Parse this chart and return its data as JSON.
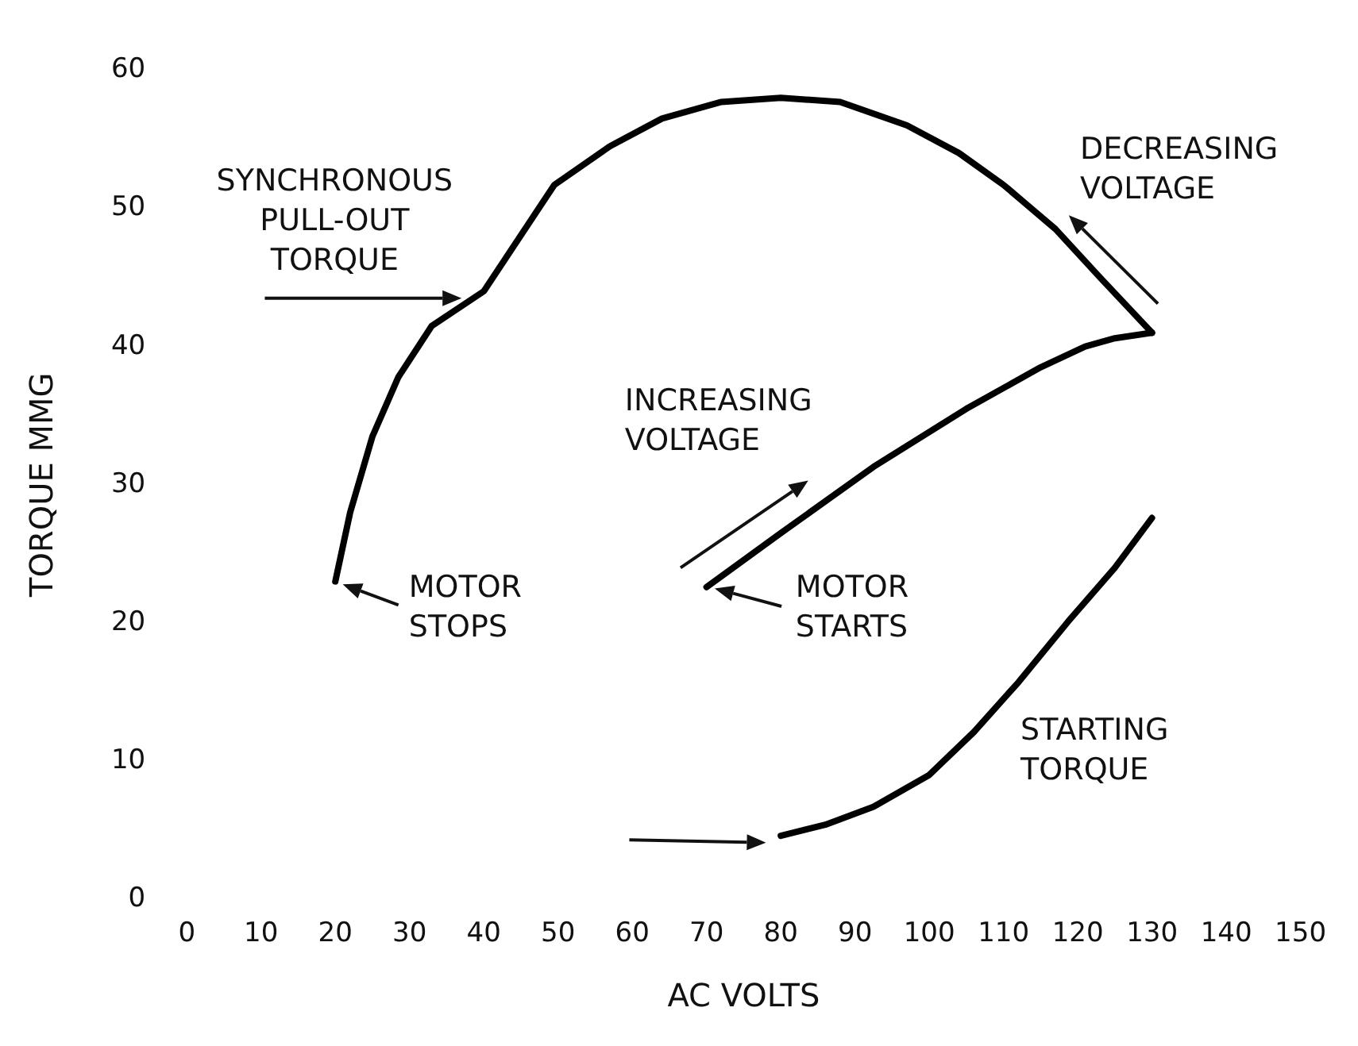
{
  "chart_data": {
    "type": "line",
    "xlabel": "AC VOLTS",
    "ylabel": "TORQUE MMG",
    "xlim": [
      0,
      150
    ],
    "xticks": [
      0,
      10,
      20,
      30,
      40,
      50,
      60,
      70,
      80,
      90,
      100,
      110,
      120,
      130,
      140,
      150
    ],
    "ylim": [
      0,
      60
    ],
    "yticks": [
      0,
      10,
      20,
      30,
      40,
      50,
      60
    ],
    "grid": false,
    "legend": false,
    "marker": "none",
    "series": [
      {
        "color": "#000000",
        "x": [
          20,
          22,
          25,
          28.5,
          33,
          40,
          49.5,
          57,
          64,
          72,
          80,
          88,
          97,
          104,
          110,
          117,
          123,
          130
        ],
        "values": [
          23,
          28,
          33.5,
          37.8,
          41.5,
          44,
          51.7,
          54.5,
          56.5,
          57.7,
          58,
          57.7,
          56,
          54,
          51.7,
          48.5,
          45,
          41
        ]
      },
      {
        "color": "#000000",
        "x": [
          70,
          80,
          92.5,
          105,
          115,
          121,
          125,
          130
        ],
        "values": [
          22.6,
          26.5,
          31.3,
          35.5,
          38.5,
          40,
          40.6,
          41
        ]
      },
      {
        "color": "#000000",
        "x": [
          80,
          86,
          92.5,
          100,
          106,
          112,
          118.7,
          125,
          130
        ],
        "values": [
          4.6,
          5.4,
          6.7,
          9,
          12.1,
          15.7,
          20.1,
          24,
          27.6
        ]
      }
    ],
    "annotations": [
      {
        "text": "SYNCHRONOUS\nPULL-OUT\nTORQUE",
        "x": 40,
        "y": 44
      },
      "DECREASING\nVOLTAGE",
      "INCREASING\nVOLTAGE",
      {
        "text": "MOTOR\nSTOPS",
        "x": 20,
        "y": 23
      },
      {
        "text": "MOTOR\nSTARTS",
        "x": 70,
        "y": 22.6
      },
      "STARTING\nTORQUE"
    ]
  }
}
